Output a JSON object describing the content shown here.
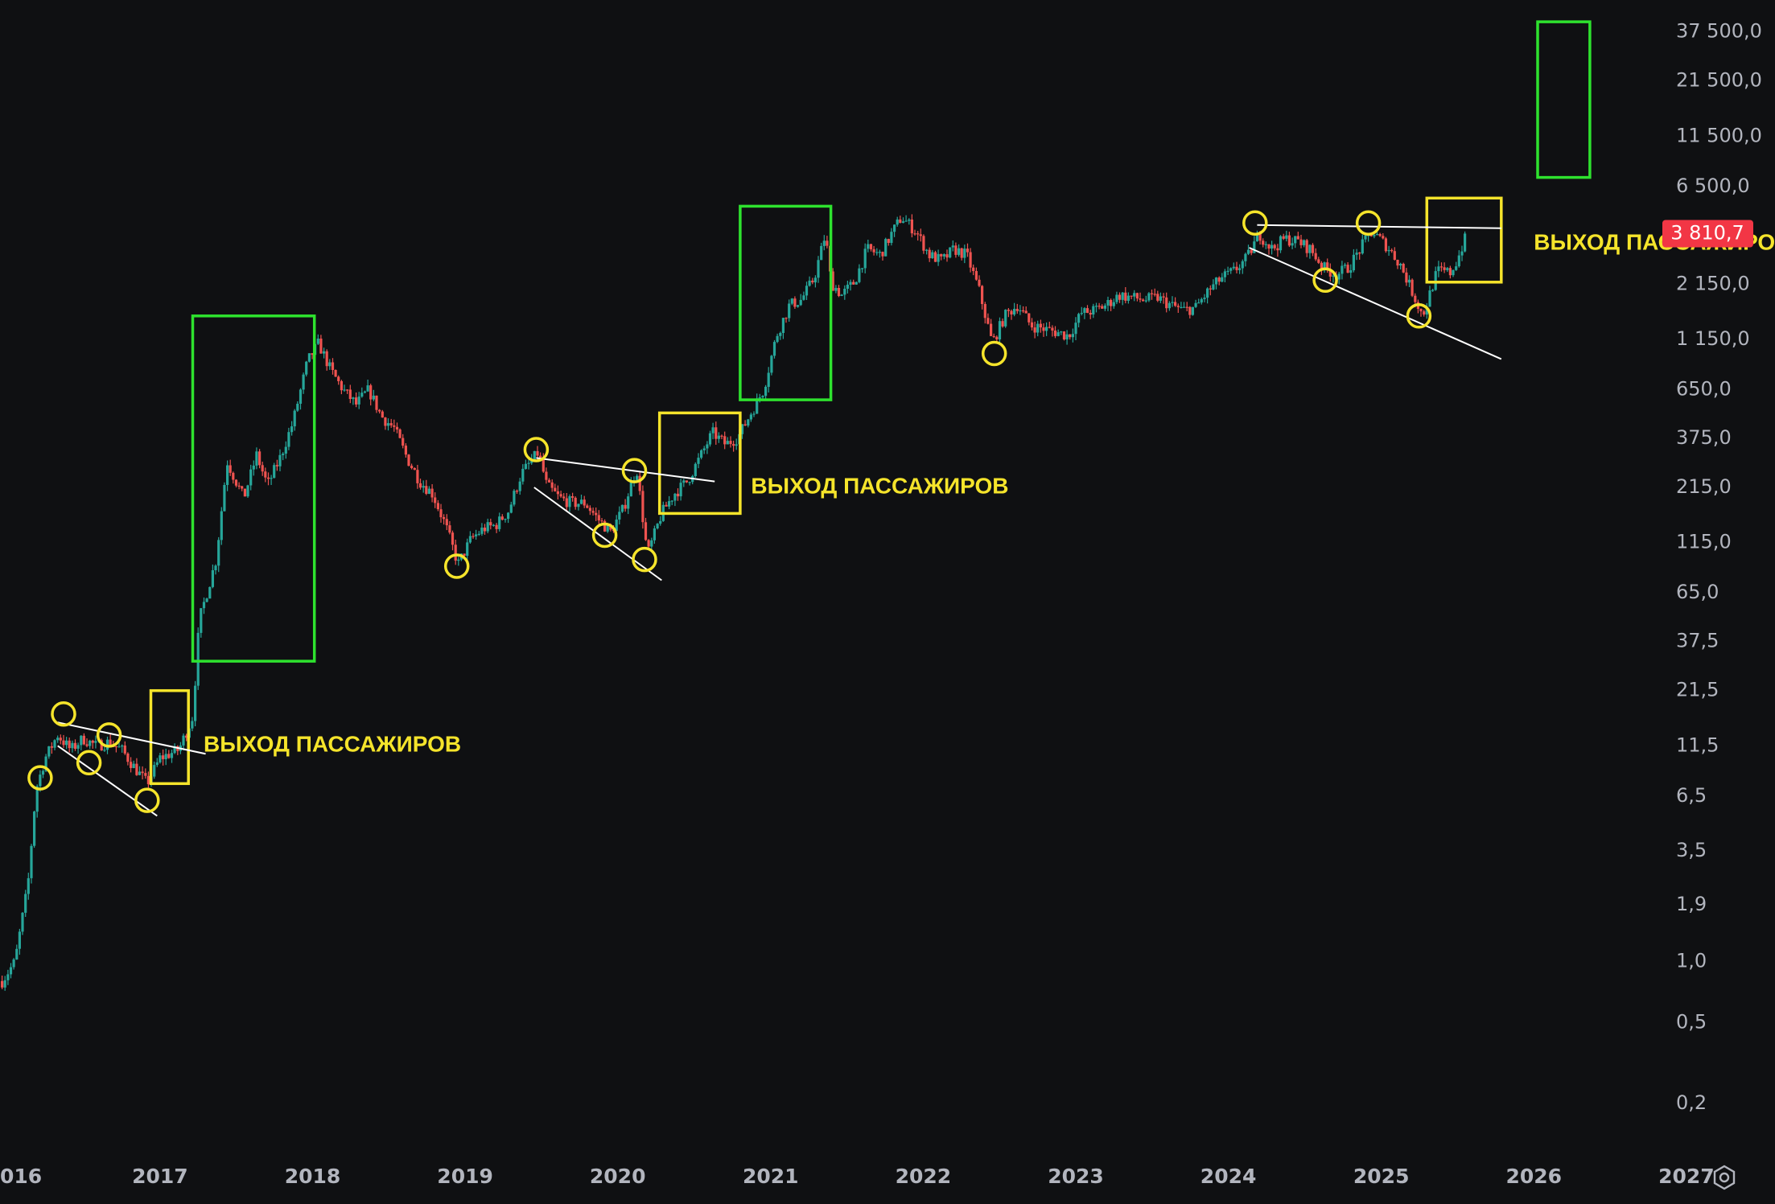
{
  "chart_data": {
    "type": "candlestick",
    "title": "",
    "xlabel": "",
    "ylabel": "",
    "scale": "log",
    "grid": false,
    "ylim": [
      0.12,
      50000
    ],
    "xlim": [
      "2015-12-15",
      "2027-08-01"
    ],
    "y_ticks": [
      "37 500,0",
      "21 500,0",
      "11 500,0",
      "6 500,0",
      "2 150,0",
      "1 150,0",
      "650,0",
      "375,0",
      "215,0",
      "115,0",
      "65,0",
      "37,5",
      "21,5",
      "11,5",
      "6,5",
      "3,5",
      "1,9",
      "1,0",
      "0,5",
      "0,2"
    ],
    "y_tick_values": [
      37500,
      21500,
      11500,
      6500,
      2150,
      1150,
      650,
      375,
      215,
      115,
      65,
      37.5,
      21.5,
      11.5,
      6.5,
      3.5,
      1.9,
      1.0,
      0.5,
      0.2
    ],
    "x_ticks": [
      "016",
      "2017",
      "2018",
      "2019",
      "2020",
      "2021",
      "2022",
      "2023",
      "2024",
      "2025",
      "2026",
      "2027"
    ],
    "x_tick_dates": [
      "2016-01-01",
      "2017-01-01",
      "2018-01-01",
      "2019-01-01",
      "2020-01-01",
      "2021-01-01",
      "2022-01-01",
      "2023-01-01",
      "2024-01-01",
      "2025-01-01",
      "2026-01-01",
      "2027-01-01"
    ],
    "last_price": {
      "label": "3 810,7",
      "value": 3810.7,
      "color": "#f23645"
    },
    "colors": {
      "up": "#26a69a",
      "down": "#ef5350",
      "highlight_circle": "#f5e42b",
      "target_box": "#2ee22e",
      "trend_line": "#ffffff"
    },
    "price_path": [
      [
        "2015-12-20",
        0.8
      ],
      [
        "2016-01-20",
        1.0
      ],
      [
        "2016-02-20",
        2.4
      ],
      [
        "2016-03-10",
        7.0
      ],
      [
        "2016-04-01",
        10.0
      ],
      [
        "2016-05-01",
        13.0
      ],
      [
        "2016-06-01",
        11.0
      ],
      [
        "2016-07-01",
        12.5
      ],
      [
        "2016-08-01",
        11.5
      ],
      [
        "2016-09-01",
        12.0
      ],
      [
        "2016-10-01",
        11.0
      ],
      [
        "2016-11-01",
        9.0
      ],
      [
        "2016-12-01",
        7.5
      ],
      [
        "2017-01-01",
        10.0
      ],
      [
        "2017-02-15",
        11.0
      ],
      [
        "2017-03-20",
        16.0
      ],
      [
        "2017-04-05",
        48.0
      ],
      [
        "2017-05-15",
        95.0
      ],
      [
        "2017-06-10",
        290.0
      ],
      [
        "2017-07-20",
        190.0
      ],
      [
        "2017-08-20",
        310.0
      ],
      [
        "2017-09-15",
        220.0
      ],
      [
        "2017-10-15",
        300.0
      ],
      [
        "2017-11-15",
        450.0
      ],
      [
        "2017-12-20",
        900.0
      ],
      [
        "2018-01-15",
        1100.0
      ],
      [
        "2018-02-15",
        800.0
      ],
      [
        "2018-03-15",
        650.0
      ],
      [
        "2018-04-15",
        550.0
      ],
      [
        "2018-05-15",
        650.0
      ],
      [
        "2018-06-15",
        480.0
      ],
      [
        "2018-07-15",
        420.0
      ],
      [
        "2018-08-15",
        300.0
      ],
      [
        "2018-09-15",
        230.0
      ],
      [
        "2018-10-15",
        200.0
      ],
      [
        "2018-11-15",
        140.0
      ],
      [
        "2018-12-15",
        90.0
      ],
      [
        "2019-01-15",
        120.0
      ],
      [
        "2019-02-15",
        135.0
      ],
      [
        "2019-03-15",
        140.0
      ],
      [
        "2019-04-15",
        165.0
      ],
      [
        "2019-05-15",
        250.0
      ],
      [
        "2019-06-25",
        320.0
      ],
      [
        "2019-07-15",
        220.0
      ],
      [
        "2019-08-15",
        190.0
      ],
      [
        "2019-09-15",
        180.0
      ],
      [
        "2019-10-15",
        180.0
      ],
      [
        "2019-11-15",
        150.0
      ],
      [
        "2019-12-15",
        130.0
      ],
      [
        "2020-01-15",
        170.0
      ],
      [
        "2020-02-15",
        270.0
      ],
      [
        "2020-03-12",
        100.0
      ],
      [
        "2020-04-15",
        160.0
      ],
      [
        "2020-05-15",
        200.0
      ],
      [
        "2020-06-15",
        230.0
      ],
      [
        "2020-07-15",
        300.0
      ],
      [
        "2020-08-15",
        400.0
      ],
      [
        "2020-09-15",
        350.0
      ],
      [
        "2020-10-15",
        380.0
      ],
      [
        "2020-11-15",
        500.0
      ],
      [
        "2020-12-15",
        650.0
      ],
      [
        "2021-01-15",
        1200.0
      ],
      [
        "2021-02-15",
        1700.0
      ],
      [
        "2021-03-15",
        1800.0
      ],
      [
        "2021-04-15",
        2300.0
      ],
      [
        "2021-05-12",
        3800.0
      ],
      [
        "2021-05-25",
        2200.0
      ],
      [
        "2021-06-20",
        1900.0
      ],
      [
        "2021-07-20",
        2200.0
      ],
      [
        "2021-08-20",
        3200.0
      ],
      [
        "2021-09-20",
        3000.0
      ],
      [
        "2021-10-20",
        3900.0
      ],
      [
        "2021-11-10",
        4600.0
      ],
      [
        "2021-12-15",
        3900.0
      ],
      [
        "2022-01-15",
        3000.0
      ],
      [
        "2022-02-15",
        2800.0
      ],
      [
        "2022-03-15",
        3200.0
      ],
      [
        "2022-04-15",
        3000.0
      ],
      [
        "2022-05-15",
        2000.0
      ],
      [
        "2022-06-15",
        1100.0
      ],
      [
        "2022-07-15",
        1500.0
      ],
      [
        "2022-08-15",
        1700.0
      ],
      [
        "2022-09-15",
        1350.0
      ],
      [
        "2022-10-15",
        1300.0
      ],
      [
        "2022-11-15",
        1250.0
      ],
      [
        "2022-12-15",
        1200.0
      ],
      [
        "2023-01-15",
        1550.0
      ],
      [
        "2023-02-15",
        1600.0
      ],
      [
        "2023-03-15",
        1700.0
      ],
      [
        "2023-04-15",
        1900.0
      ],
      [
        "2023-05-15",
        1850.0
      ],
      [
        "2023-06-15",
        1800.0
      ],
      [
        "2023-07-15",
        1850.0
      ],
      [
        "2023-08-15",
        1700.0
      ],
      [
        "2023-09-15",
        1600.0
      ],
      [
        "2023-10-15",
        1650.0
      ],
      [
        "2023-11-15",
        2000.0
      ],
      [
        "2023-12-15",
        2300.0
      ],
      [
        "2024-01-15",
        2500.0
      ],
      [
        "2024-02-15",
        2900.0
      ],
      [
        "2024-03-15",
        3800.0
      ],
      [
        "2024-04-15",
        3200.0
      ],
      [
        "2024-05-15",
        3600.0
      ],
      [
        "2024-06-15",
        3500.0
      ],
      [
        "2024-07-15",
        3200.0
      ],
      [
        "2024-08-15",
        2600.0
      ],
      [
        "2024-09-15",
        2400.0
      ],
      [
        "2024-10-15",
        2600.0
      ],
      [
        "2024-11-15",
        3300.0
      ],
      [
        "2024-12-10",
        3900.0
      ],
      [
        "2025-01-15",
        3300.0
      ],
      [
        "2025-02-15",
        2700.0
      ],
      [
        "2025-03-15",
        2000.0
      ],
      [
        "2025-04-10",
        1500.0
      ],
      [
        "2025-05-15",
        2500.0
      ],
      [
        "2025-06-15",
        2450.0
      ],
      [
        "2025-07-01",
        2800.0
      ],
      [
        "2025-07-25",
        3810.7
      ]
    ],
    "annotations": [
      {
        "text": "ВЫХОД ПАССАЖИРОВ",
        "date": "2017-04-15",
        "value": 11.5
      },
      {
        "text": "ВЫХОД ПАССАЖИРОВ",
        "date": "2020-11-15",
        "value": 215.0
      },
      {
        "text": "ВЫХОД ПАССАЖИРОВ",
        "date": "2026-01-01",
        "value": 3400.0
      }
    ],
    "zones": [
      {
        "kind": "yellow",
        "from": "2016-12-10",
        "to": "2017-03-10",
        "low": 7.5,
        "high": 21.5
      },
      {
        "kind": "green",
        "from": "2017-03-20",
        "to": "2018-01-05",
        "low": 30,
        "high": 1500
      },
      {
        "kind": "yellow",
        "from": "2020-04-10",
        "to": "2020-10-20",
        "low": 160,
        "high": 500
      },
      {
        "kind": "green",
        "from": "2020-10-20",
        "to": "2021-05-25",
        "low": 580,
        "high": 5200
      },
      {
        "kind": "yellow",
        "from": "2025-04-20",
        "to": "2025-10-15",
        "low": 2200,
        "high": 5700
      },
      {
        "kind": "green",
        "from": "2026-01-10",
        "to": "2026-05-15",
        "low": 7200,
        "high": 42000
      }
    ],
    "circles": [
      [
        "2016-03-20",
        8.0
      ],
      [
        "2016-05-15",
        16.5
      ],
      [
        "2016-07-15",
        9.5
      ],
      [
        "2016-09-01",
        13.0
      ],
      [
        "2016-12-01",
        6.2
      ],
      [
        "2018-12-12",
        88.0
      ],
      [
        "2019-06-20",
        330.0
      ],
      [
        "2019-12-01",
        125.0
      ],
      [
        "2020-02-10",
        260.0
      ],
      [
        "2020-03-05",
        95.0
      ],
      [
        "2022-06-20",
        980.0
      ],
      [
        "2024-03-05",
        4300.0
      ],
      [
        "2024-08-20",
        2250.0
      ],
      [
        "2024-12-01",
        4300.0
      ],
      [
        "2025-04-01",
        1500.0
      ]
    ],
    "trend_lines": [
      [
        [
          "2016-05-01",
          15.0
        ],
        [
          "2017-04-20",
          10.5
        ]
      ],
      [
        [
          "2016-05-01",
          11.5
        ],
        [
          "2016-12-25",
          5.2
        ]
      ],
      [
        [
          "2019-06-20",
          300.0
        ],
        [
          "2020-08-20",
          230.0
        ]
      ],
      [
        [
          "2019-06-15",
          215.0
        ],
        [
          "2020-04-15",
          75.0
        ]
      ],
      [
        [
          "2024-03-10",
          4200.0
        ],
        [
          "2025-10-15",
          4050.0
        ]
      ],
      [
        [
          "2024-02-20",
          3250.0
        ],
        [
          "2025-10-15",
          920.0
        ]
      ]
    ]
  }
}
